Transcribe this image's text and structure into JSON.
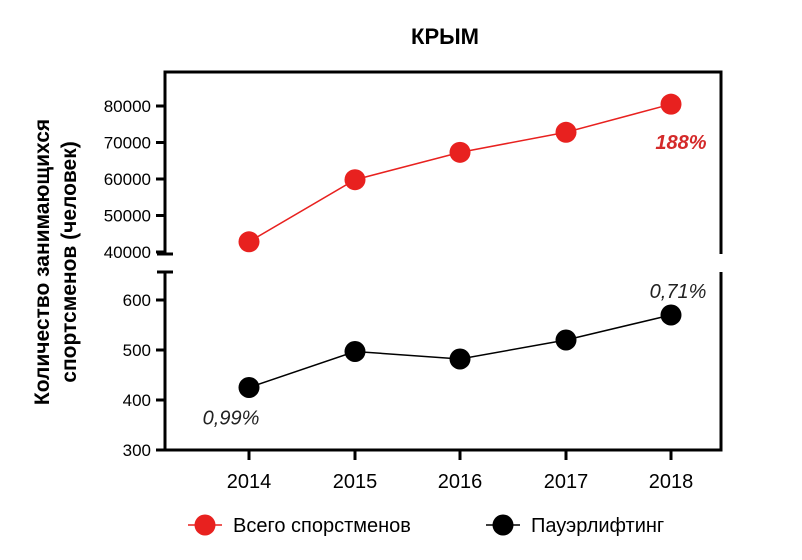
{
  "chart_data": {
    "type": "line",
    "title": "КРЫМ",
    "ylabel_line1": "Количество занимающихся",
    "ylabel_line2": "спортсменов (человек)",
    "xlabel": "",
    "x": [
      "2014",
      "2015",
      "2016",
      "2017",
      "2018"
    ],
    "axis_break": true,
    "upper_axis": {
      "ylim": [
        40000,
        80000
      ],
      "ticks": [
        "40000",
        "50000",
        "60000",
        "70000",
        "80000"
      ]
    },
    "lower_axis": {
      "ylim": [
        300,
        600
      ],
      "ticks": [
        "300",
        "400",
        "500",
        "600"
      ]
    },
    "series": [
      {
        "name": "Всего спорстменов",
        "color": "#e8211f",
        "segment": "upper",
        "values": [
          42800,
          59800,
          67300,
          72800,
          80500
        ]
      },
      {
        "name": "Пауэрлифтинг",
        "color": "#000000",
        "segment": "lower",
        "values": [
          425,
          497,
          482,
          520,
          570
        ]
      }
    ],
    "annotations": [
      {
        "text": "188%",
        "color": "#d42a2a",
        "bold": true,
        "series": 0,
        "index": 4
      },
      {
        "text": "0,71%",
        "color": "#222222",
        "bold": false,
        "series": 1,
        "index": 4
      },
      {
        "text": "0,99%",
        "color": "#222222",
        "bold": false,
        "series": 1,
        "index": 0
      }
    ],
    "legend": {
      "position": "bottom"
    },
    "grid": false
  }
}
